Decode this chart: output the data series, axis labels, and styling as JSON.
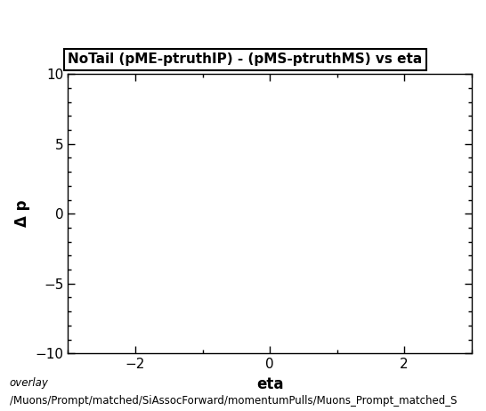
{
  "title": "NoTail (pME-ptruthIP) - (pMS-ptruthMS) vs eta",
  "xlabel": "eta",
  "ylabel": "Δ p",
  "xlim": [
    -3.0,
    3.0
  ],
  "ylim": [
    -10,
    10
  ],
  "xticks": [
    -2,
    0,
    2
  ],
  "yticks": [
    -10,
    -5,
    0,
    5,
    10
  ],
  "x_minor_ticks": 1.0,
  "y_minor_ticks": 1.0,
  "footer_line1": "overlay",
  "footer_line2": "/Muons/Prompt/matched/SiAssocForward/momentumPulls/Muons_Prompt_matched_S",
  "bg_color": "#ffffff",
  "title_fontsize": 11,
  "label_fontsize": 12,
  "tick_fontsize": 11,
  "footer_fontsize": 8.5
}
